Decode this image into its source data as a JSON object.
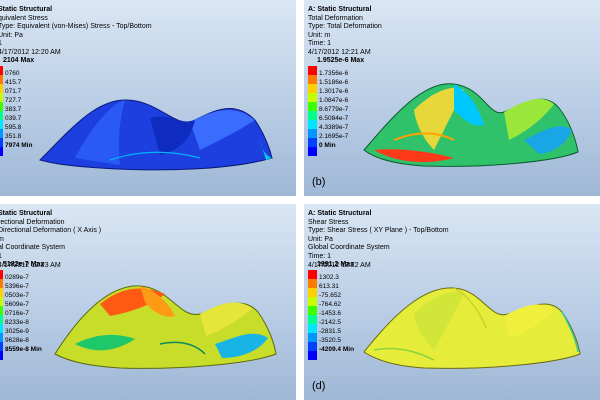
{
  "panels": [
    {
      "lines": [
        "Static Structural",
        "quivalent Stress",
        "Type: Equivalent (von-Mises) Stress - Top/Bottom",
        "Unit: Pa",
        "1",
        "4/17/2012 12:20 AM"
      ],
      "legend_max": "2104 Max",
      "legend_values": [
        "0760",
        "415.7",
        "071.7",
        "727.7",
        "383.7",
        "039.7",
        "595.8",
        "351.8",
        "7974 Min"
      ],
      "caption": ")"
    },
    {
      "lines": [
        "A: Static Structural",
        "Total Deformation",
        "Type: Total Deformation",
        "Unit: m",
        "Time: 1",
        "4/17/2012 12:21 AM"
      ],
      "legend_max": "1.9525e-6 Max",
      "legend_values": [
        "1.7356e-6",
        "1.5186e-6",
        "1.3017e-6",
        "1.0847e-6",
        "8.6779e-7",
        "6.5084e-7",
        "4.3389e-7",
        "2.1695e-7",
        "0 Min"
      ],
      "caption": "(b)"
    },
    {
      "lines": [
        "Static Structural",
        "rectional Deformation",
        "Directional Deformation ( X Axis )",
        "m",
        "al Coordinate System",
        "1",
        "4/17/2012 12:23 AM"
      ],
      "legend_max": "5182e-7 Max",
      "legend_values": [
        "0289e-7",
        "5396e-7",
        "0503e-7",
        "5609e-7",
        "0716e-7",
        "8233e-8",
        "3025e-9",
        "9628e-8",
        "8559e-8 Min"
      ],
      "caption": ")"
    },
    {
      "lines": [
        "A: Static Structural",
        "Shear Stress",
        "Type: Shear Stress ( XY Plane ) - Top/Bottom",
        "Unit: Pa",
        "Global Coordinate System",
        "Time: 1",
        "4/17/2012 12:22 AM"
      ],
      "legend_max": "1991.2 Max",
      "legend_values": [
        "1302.3",
        "613.31",
        "-75.652",
        "-764.62",
        "-1453.6",
        "-2142.5",
        "-2831.5",
        "-3520.5",
        "-4209.4 Min"
      ],
      "caption": "(d)"
    }
  ],
  "legend_colors": [
    "#ff0000",
    "#ff7b00",
    "#ffd000",
    "#c8ff00",
    "#3cff00",
    "#00ff8c",
    "#00e6ff",
    "#0096ff",
    "#0040ff",
    "#0000ff"
  ]
}
